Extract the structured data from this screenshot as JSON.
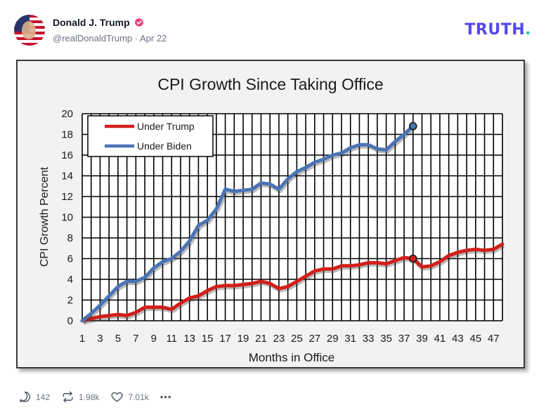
{
  "post": {
    "display_name": "Donald J. Trump",
    "handle": "@realDonaldTrump",
    "date": "Apr 22",
    "logo_text": "TRUTH",
    "logo_dot": "."
  },
  "actions": {
    "replies": "142",
    "retruths": "1.98k",
    "likes": "7.01k",
    "more": "•••"
  },
  "colors": {
    "brand": "#5448ee",
    "brand_dot": "#17c3b2",
    "trump_series": "#d21f1b",
    "biden_series": "#4a74b5",
    "verified_badge": "#e8437a"
  },
  "chart_data": {
    "type": "line",
    "title": "CPI Growth Since Taking Office",
    "xlabel": "Months in Office",
    "ylabel": "CPI Growth Percent",
    "xlim": [
      1,
      48
    ],
    "ylim": [
      0,
      20
    ],
    "yticks": [
      "0",
      "2",
      "4",
      "6",
      "8",
      "10",
      "12",
      "14",
      "16",
      "18",
      "20"
    ],
    "xticks": [
      "1",
      "3",
      "5",
      "7",
      "9",
      "11",
      "13",
      "15",
      "17",
      "19",
      "21",
      "23",
      "25",
      "27",
      "29",
      "31",
      "33",
      "35",
      "37",
      "39",
      "41",
      "43",
      "45",
      "47"
    ],
    "grid": true,
    "legend_position": "top-left",
    "series": [
      {
        "name": "Under Trump",
        "x": [
          1,
          2,
          3,
          4,
          5,
          6,
          7,
          8,
          9,
          10,
          11,
          12,
          13,
          14,
          15,
          16,
          17,
          18,
          19,
          20,
          21,
          22,
          23,
          24,
          25,
          26,
          27,
          28,
          29,
          30,
          31,
          32,
          33,
          34,
          35,
          36,
          37,
          38,
          39,
          40,
          41,
          42,
          43,
          44,
          45,
          46,
          47,
          48
        ],
        "values": [
          0,
          0.2,
          0.4,
          0.5,
          0.6,
          0.5,
          0.8,
          1.3,
          1.3,
          1.3,
          1.1,
          1.7,
          2.2,
          2.4,
          2.9,
          3.3,
          3.4,
          3.4,
          3.5,
          3.6,
          3.8,
          3.6,
          3.1,
          3.3,
          3.8,
          4.3,
          4.8,
          5.0,
          5.0,
          5.3,
          5.3,
          5.4,
          5.6,
          5.6,
          5.5,
          5.8,
          6.1,
          6.0,
          5.2,
          5.3,
          5.7,
          6.3,
          6.6,
          6.8,
          6.9,
          6.8,
          6.9,
          7.4
        ]
      },
      {
        "name": "Under Biden",
        "x": [
          1,
          2,
          3,
          4,
          5,
          6,
          7,
          8,
          9,
          10,
          11,
          12,
          13,
          14,
          15,
          16,
          17,
          18,
          19,
          20,
          21,
          22,
          23,
          24,
          25,
          26,
          27,
          28,
          29,
          30,
          31,
          32,
          33,
          34,
          35,
          36,
          37,
          38
        ],
        "values": [
          0,
          0.7,
          1.5,
          2.4,
          3.3,
          3.8,
          3.8,
          4.2,
          5.1,
          5.7,
          6.0,
          6.7,
          7.7,
          9.2,
          9.7,
          10.8,
          12.7,
          12.5,
          12.6,
          12.7,
          13.3,
          13.2,
          12.7,
          13.7,
          14.4,
          14.8,
          15.3,
          15.6,
          16.0,
          16.2,
          16.7,
          17.0,
          17.0,
          16.6,
          16.5,
          17.3,
          18.0,
          18.8
        ]
      }
    ]
  }
}
